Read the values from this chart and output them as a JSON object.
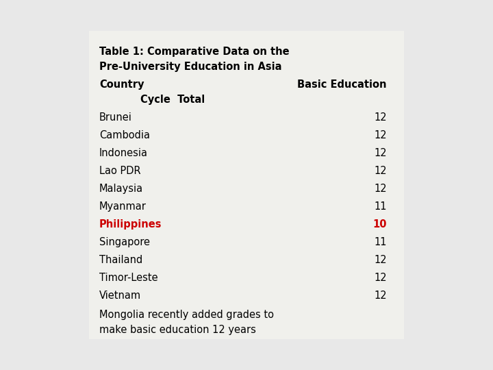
{
  "background_color": "#e8e8e8",
  "box_color": "#f0f0ec",
  "title_line1": "Table 1: Comparative Data on the",
  "title_line2": "Pre-University Education in Asia",
  "header_col1": "Country",
  "header_col2": "Basic Education",
  "header_line2": "Cycle  Total",
  "countries": [
    "Brunei",
    "Cambodia",
    "Indonesia",
    "Lao PDR",
    "Malaysia",
    "Myanmar",
    "Philippines",
    "Singapore",
    "Thailand",
    "Timor-Leste",
    "Vietnam"
  ],
  "values": [
    "12",
    "12",
    "12",
    "12",
    "12",
    "11",
    "10",
    "11",
    "12",
    "12",
    "12"
  ],
  "highlight_index": 6,
  "highlight_color": "#cc0000",
  "normal_color": "#000000",
  "footnote_line1": "Mongolia recently added grades to",
  "footnote_line2": "make basic education 12 years",
  "font_size": 10.5
}
